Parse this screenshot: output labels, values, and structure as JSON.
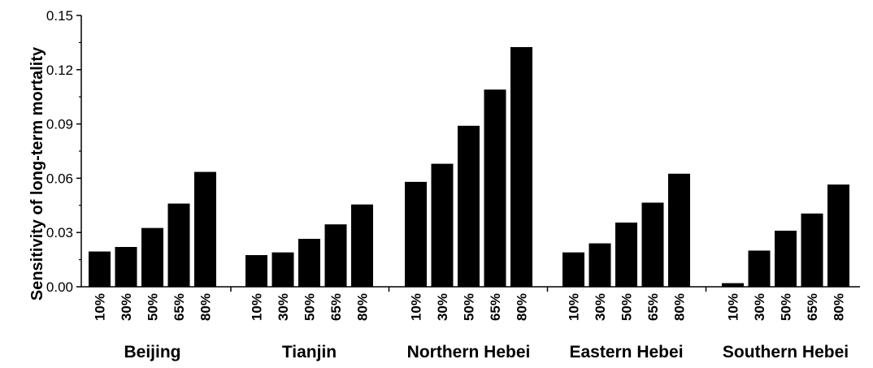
{
  "chart_data": {
    "type": "bar",
    "ylabel": "Sensitivity of long-term mortality",
    "xlabel": "",
    "ylim": [
      0,
      0.15
    ],
    "yticks": [
      "0.00",
      "0.03",
      "0.06",
      "0.09",
      "0.12",
      "0.15"
    ],
    "categories": [
      "10%",
      "30%",
      "50%",
      "65%",
      "80%"
    ],
    "groups": [
      {
        "name": "Beijing",
        "values": [
          0.0195,
          0.022,
          0.0325,
          0.046,
          0.0635
        ]
      },
      {
        "name": "Tianjin",
        "values": [
          0.0175,
          0.019,
          0.0265,
          0.0345,
          0.0455
        ]
      },
      {
        "name": "Northern Hebei",
        "values": [
          0.058,
          0.068,
          0.089,
          0.109,
          0.1325
        ]
      },
      {
        "name": "Eastern Hebei",
        "values": [
          0.019,
          0.024,
          0.0355,
          0.0465,
          0.0625
        ]
      },
      {
        "name": "Southern Hebei",
        "values": [
          0.002,
          0.02,
          0.031,
          0.0405,
          0.0565
        ]
      }
    ],
    "bar_color": "#000000",
    "grid": false,
    "legend": "none"
  }
}
